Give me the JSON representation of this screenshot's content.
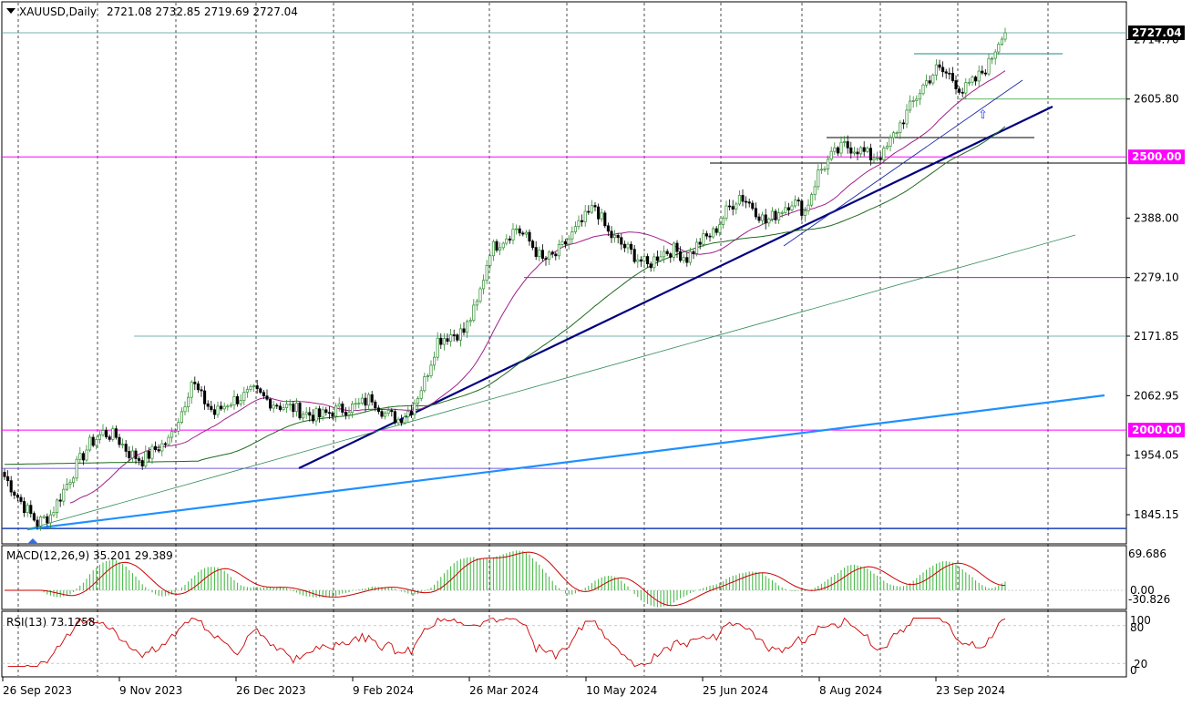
{
  "header": {
    "symbol": "XAUUSD,Daily",
    "ohlc": "2721.08 2732.85 2719.69 2727.04"
  },
  "chart_data": {
    "type": "candlestick",
    "symbol": "XAUUSD",
    "timeframe": "Daily",
    "last_price": "2727.04",
    "price_axis_labels": [
      "2714.70",
      "2605.80",
      "2388.00",
      "2279.10",
      "2171.85",
      "2062.95",
      "1954.05",
      "1845.15"
    ],
    "price_axis_values": [
      2714.7,
      2605.8,
      2388.0,
      2279.1,
      2171.85,
      2062.95,
      1954.05,
      1845.15
    ],
    "date_labels": [
      "26 Sep 2023",
      "9 Nov 2023",
      "26 Dec 2023",
      "9 Feb 2024",
      "26 Mar 2024",
      "10 May 2024",
      "25 Jun 2024",
      "8 Aug 2024",
      "23 Sep 2024"
    ],
    "ylim": [
      1810,
      2750
    ],
    "price_points": [
      [
        0,
        1915
      ],
      [
        6,
        1860
      ],
      [
        10,
        1830
      ],
      [
        14,
        1845
      ],
      [
        18,
        1890
      ],
      [
        22,
        1935
      ],
      [
        26,
        1975
      ],
      [
        30,
        1995
      ],
      [
        34,
        1988
      ],
      [
        38,
        1958
      ],
      [
        42,
        1945
      ],
      [
        46,
        1965
      ],
      [
        50,
        1980
      ],
      [
        54,
        2035
      ],
      [
        57,
        2090
      ],
      [
        60,
        2060
      ],
      [
        64,
        2030
      ],
      [
        68,
        2050
      ],
      [
        72,
        2060
      ],
      [
        76,
        2070
      ],
      [
        80,
        2055
      ],
      [
        84,
        2045
      ],
      [
        88,
        2040
      ],
      [
        92,
        2030
      ],
      [
        96,
        2025
      ],
      [
        100,
        2035
      ],
      [
        104,
        2040
      ],
      [
        108,
        2045
      ],
      [
        112,
        2060
      ],
      [
        116,
        2030
      ],
      [
        120,
        2020
      ],
      [
        124,
        2040
      ],
      [
        128,
        2090
      ],
      [
        132,
        2165
      ],
      [
        136,
        2175
      ],
      [
        140,
        2180
      ],
      [
        144,
        2230
      ],
      [
        148,
        2330
      ],
      [
        152,
        2350
      ],
      [
        156,
        2370
      ],
      [
        160,
        2345
      ],
      [
        164,
        2310
      ],
      [
        168,
        2320
      ],
      [
        172,
        2350
      ],
      [
        176,
        2380
      ],
      [
        180,
        2410
      ],
      [
        184,
        2360
      ],
      [
        188,
        2340
      ],
      [
        192,
        2320
      ],
      [
        196,
        2300
      ],
      [
        200,
        2325
      ],
      [
        204,
        2330
      ],
      [
        208,
        2315
      ],
      [
        212,
        2345
      ],
      [
        216,
        2360
      ],
      [
        220,
        2400
      ],
      [
        224,
        2430
      ],
      [
        228,
        2410
      ],
      [
        232,
        2380
      ],
      [
        236,
        2400
      ],
      [
        240,
        2420
      ],
      [
        244,
        2400
      ],
      [
        248,
        2470
      ],
      [
        252,
        2500
      ],
      [
        256,
        2520
      ],
      [
        260,
        2515
      ],
      [
        264,
        2500
      ],
      [
        268,
        2505
      ],
      [
        272,
        2550
      ],
      [
        276,
        2590
      ],
      [
        280,
        2630
      ],
      [
        284,
        2660
      ],
      [
        288,
        2650
      ],
      [
        292,
        2620
      ],
      [
        296,
        2640
      ],
      [
        300,
        2670
      ],
      [
        304,
        2727
      ]
    ],
    "horizontal_levels": [
      {
        "value": 2727.04,
        "label": "2727.04"
      },
      {
        "value": 2605.8,
        "label": ""
      },
      {
        "value": 2500.0,
        "label": "2500.00"
      },
      {
        "value": 2000.0,
        "label": "2000.00"
      },
      {
        "value": 2279.1,
        "label": ""
      },
      {
        "value": 2171.85,
        "label": ""
      },
      {
        "value": 1930.0,
        "label": ""
      },
      {
        "value": 1820.0,
        "label": ""
      }
    ],
    "macd": {
      "label": "MACD(12,26,9) 35.201 29.389",
      "axis_labels": [
        "69.686",
        "0.00",
        "-30.826"
      ]
    },
    "rsi": {
      "label": "RSI(13) 73.1258",
      "axis_labels": [
        "100",
        "80",
        "20",
        "0"
      ]
    },
    "colors": {
      "bull": "#2e8b2e",
      "bear": "#000000",
      "level_magenta": "#ff00ff",
      "trend_navy": "#000080",
      "trend_blue": "#1e90ff",
      "macd_hist": "#3cb43c",
      "macd_signal": "#cc0000",
      "rsi_line": "#cc0000"
    }
  }
}
